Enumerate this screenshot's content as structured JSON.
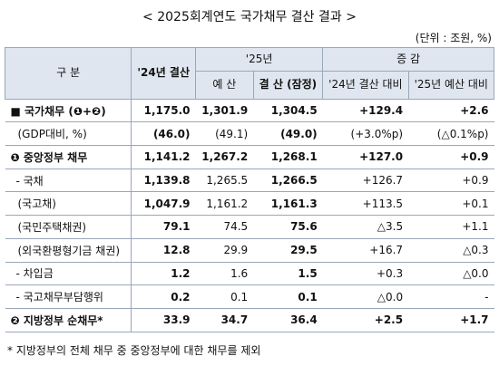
{
  "title": "< 2025회계연도 국가채무 결산 결과 >",
  "unit": "(단위 : 조원, %)",
  "header": {
    "category": "구 분",
    "y24": "'24년 결산",
    "y25": "'25년",
    "budget": "예 산",
    "settle": "결 산 (잠정)",
    "change": "증 감",
    "vs24": "'24년 결산 대비",
    "vs25": "'25년 예산 대비"
  },
  "table": {
    "rows": [
      [
        "■ 국가채무 (❶+❷)",
        "1,175.0",
        "1,301.9",
        "1,304.5",
        "+129.4",
        "+2.6"
      ],
      [
        "(GDP대비, %)",
        "(46.0)",
        "(49.1)",
        "(49.0)",
        "(+3.0%p)",
        "(△0.1%p)"
      ],
      [
        "❶ 중앙정부 채무",
        "1,141.2",
        "1,267.2",
        "1,268.1",
        "+127.0",
        "+0.9"
      ],
      [
        "- 국채",
        "1,139.8",
        "1,265.5",
        "1,266.5",
        "+126.7",
        "+0.9"
      ],
      [
        "(국고채)",
        "1,047.9",
        "1,161.2",
        "1,161.3",
        "+113.5",
        "+0.1"
      ],
      [
        "(국민주택채권)",
        "79.1",
        "74.5",
        "75.6",
        "△3.5",
        "+1.1"
      ],
      [
        "(외국환평형기금 채권)",
        "12.8",
        "29.9",
        "29.5",
        "+16.7",
        "△0.3"
      ],
      [
        "- 차입금",
        "1.2",
        "1.6",
        "1.5",
        "+0.3",
        "△0.0"
      ],
      [
        "- 국고채무부담행위",
        "0.2",
        "0.1",
        "0.1",
        "△0.0",
        "-"
      ],
      [
        "❷ 지방정부 순채무*",
        "33.9",
        "34.7",
        "36.4",
        "+2.5",
        "+1.7"
      ]
    ]
  },
  "footnote": "* 지방정부의 전체 채무 중 중앙정부에 대한 채무를 제외"
}
